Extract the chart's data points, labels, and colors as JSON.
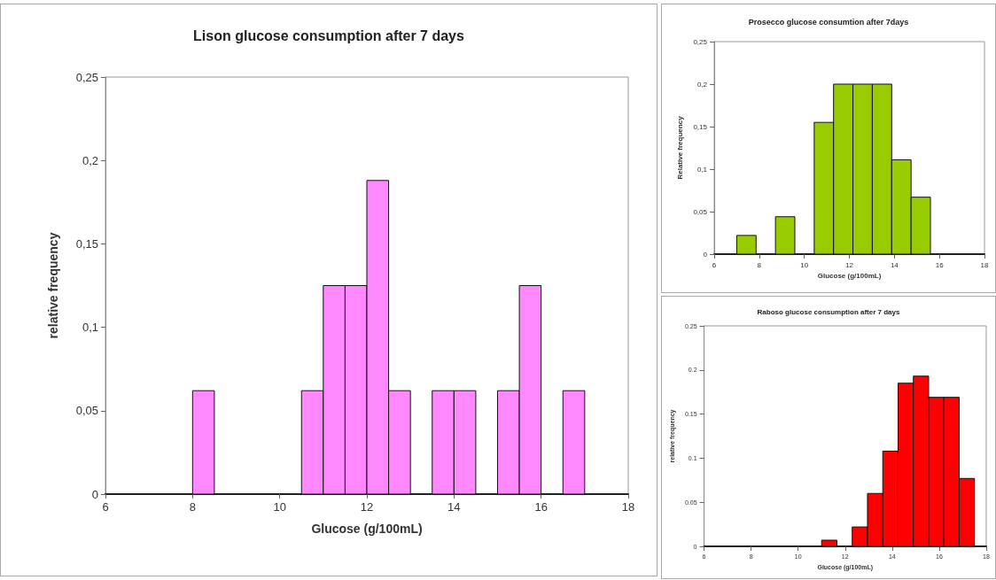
{
  "chart_data": [
    {
      "type": "histogram",
      "title": "Lison glucose consumption after 7 days",
      "xlabel": "Glucose (g/100mL)",
      "ylabel": "relative frequency",
      "color": "#ff88ff",
      "bins": [
        8,
        8.5,
        9,
        9.5,
        10,
        10.5,
        11,
        11.5,
        12,
        12.5,
        13,
        13.5,
        14,
        14.5,
        15,
        15.5,
        16,
        16.5,
        17
      ],
      "values": [
        0.062,
        0,
        0,
        0,
        0,
        0.062,
        0.125,
        0.125,
        0.188,
        0.062,
        0,
        0.062,
        0.062,
        0,
        0.062,
        0.125,
        0,
        0.062
      ],
      "xlim": [
        6,
        18
      ],
      "xticks": [
        6,
        8,
        10,
        12,
        14,
        16,
        18
      ],
      "ylim": [
        0,
        0.25
      ],
      "yticks": [
        0,
        {
          "value": 0.05,
          "label": "0,05"
        },
        {
          "value": 0.1,
          "label": "0,1"
        },
        {
          "value": 0.15,
          "label": "0,15"
        },
        {
          "value": 0.2,
          "label": "0,2"
        },
        {
          "value": 0.25,
          "label": "0,25"
        }
      ]
    },
    {
      "type": "histogram",
      "title": "Prosecco glucose consumtion after 7days",
      "xlabel": "Glucose (g/100mL)",
      "ylabel": "Relative frequency",
      "color": "#99cc00",
      "bins": [
        7,
        7.86,
        8.72,
        9.58,
        10.44,
        11.3,
        12.16,
        13.02,
        13.88,
        14.74,
        15.6
      ],
      "values": [
        0.022,
        0,
        0.044,
        0,
        0.155,
        0.2,
        0.2,
        0.2,
        0.111,
        0.067
      ],
      "xlim": [
        6,
        18
      ],
      "xticks": [
        6,
        8,
        10,
        12,
        14,
        16,
        18
      ],
      "ylim": [
        0,
        0.25
      ],
      "yticks": [
        0,
        {
          "value": 0.05,
          "label": "0,05"
        },
        {
          "value": 0.1,
          "label": "0,1"
        },
        {
          "value": 0.15,
          "label": "0,15"
        },
        {
          "value": 0.2,
          "label": "0,2"
        },
        {
          "value": 0.25,
          "label": "0,25"
        }
      ]
    },
    {
      "type": "histogram",
      "title": "Raboso glucose consumption after 7 days",
      "xlabel": "Glucose (g/100mL)",
      "ylabel": "relative frequency",
      "color": "#ff0000",
      "bins": [
        11,
        11.65,
        12.3,
        12.95,
        13.6,
        14.25,
        14.9,
        15.55,
        16.2,
        16.85,
        17.5
      ],
      "values": [
        0.007,
        0,
        0.022,
        0.06,
        0.108,
        0.185,
        0.193,
        0.169,
        0.169,
        0.077
      ],
      "xlim": [
        6,
        18
      ],
      "xticks": [
        6,
        8,
        10,
        12,
        14,
        16,
        18
      ],
      "ylim": [
        0,
        0.25
      ],
      "yticks": [
        0,
        0.05,
        0.1,
        0.15,
        0.2,
        0.25
      ]
    }
  ]
}
